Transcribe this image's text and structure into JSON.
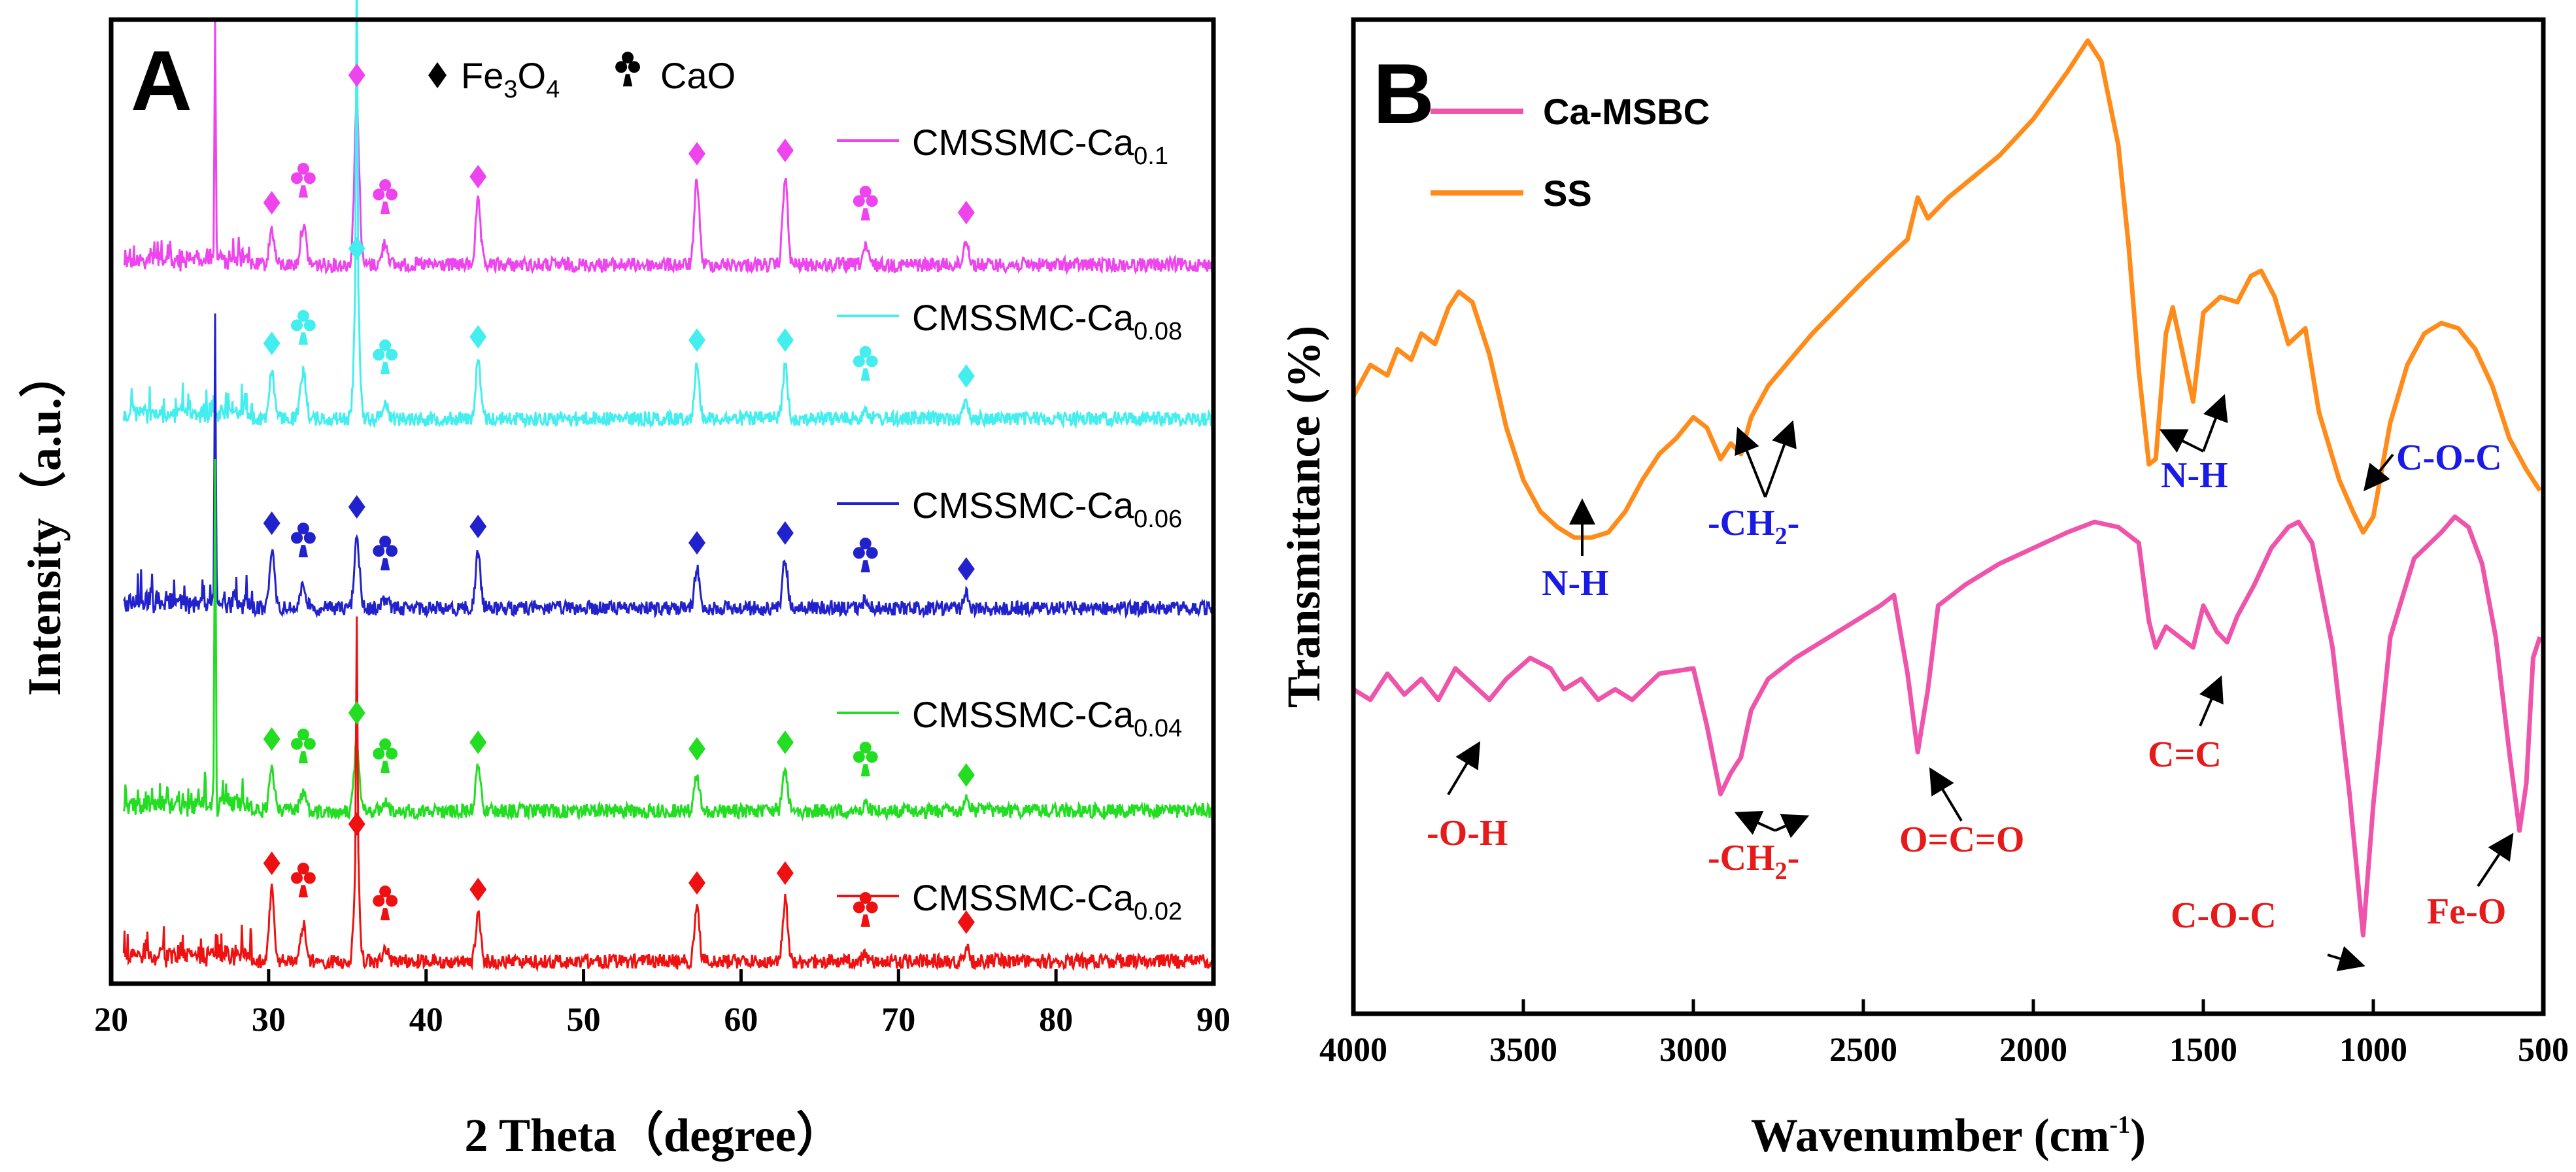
{
  "chart_data": [
    {
      "id": "A",
      "type": "line",
      "panel_label": "A",
      "title": "",
      "xlabel": "2 Theta（degree）",
      "ylabel": "Intensity（a.u.）",
      "xlim": [
        20,
        90
      ],
      "xticks": [
        20,
        30,
        40,
        50,
        60,
        70,
        80,
        90
      ],
      "grid": false,
      "legend": {
        "position": "top",
        "entries": [
          {
            "marker": "diamond",
            "base": "Fe",
            "sub1": "3",
            "mid": "O",
            "sub2": "4"
          },
          {
            "marker": "club",
            "text": "CaO"
          }
        ]
      },
      "fe3o4_peaks": [
        30.2,
        35.6,
        43.3,
        57.2,
        62.8,
        74.3
      ],
      "cao_peaks": [
        32.2,
        37.4,
        67.9
      ],
      "series": [
        {
          "name": "CMSSMC-Ca0.1",
          "base": "CMSSMC-Ca",
          "sub": "0.1",
          "color": "#ee44ee",
          "sharp": 26.6
        },
        {
          "name": "CMSSMC-Ca0.08",
          "base": "CMSSMC-Ca",
          "sub": "0.08",
          "color": "#44eeee",
          "sharp": 35.6
        },
        {
          "name": "CMSSMC-Ca0.06",
          "base": "CMSSMC-Ca",
          "sub": "0.06",
          "color": "#2222cc",
          "sharp": 26.6
        },
        {
          "name": "CMSSMC-Ca0.04",
          "base": "CMSSMC-Ca",
          "sub": "0.04",
          "color": "#22dd22",
          "sharp": 26.6
        },
        {
          "name": "CMSSMC-Ca0.02",
          "base": "CMSSMC-Ca",
          "sub": "0.02",
          "color": "#ee1111",
          "sharp": 35.6
        }
      ]
    },
    {
      "id": "B",
      "type": "line",
      "panel_label": "B",
      "title": "",
      "xlabel": "Wavenumber (cm",
      "xlabel_sup": "-1",
      "xlabel_end": ")",
      "ylabel": "Transmittance (%)",
      "xlim": [
        4000,
        500
      ],
      "xticks": [
        4000,
        3500,
        3000,
        2500,
        2000,
        1500,
        1000,
        500
      ],
      "grid": false,
      "legend": {
        "position": "top-left"
      },
      "series": [
        {
          "name": "Ca-MSBC",
          "color": "#ee55aa",
          "points": [
            [
              4000,
              0.62
            ],
            [
              3950,
              0.6
            ],
            [
              3900,
              0.65
            ],
            [
              3850,
              0.61
            ],
            [
              3800,
              0.64
            ],
            [
              3750,
              0.6
            ],
            [
              3700,
              0.66
            ],
            [
              3650,
              0.63
            ],
            [
              3600,
              0.6
            ],
            [
              3550,
              0.64
            ],
            [
              3480,
              0.68
            ],
            [
              3420,
              0.66
            ],
            [
              3380,
              0.62
            ],
            [
              3330,
              0.64
            ],
            [
              3280,
              0.6
            ],
            [
              3230,
              0.62
            ],
            [
              3180,
              0.6
            ],
            [
              3100,
              0.65
            ],
            [
              3000,
              0.66
            ],
            [
              2960,
              0.55
            ],
            [
              2920,
              0.42
            ],
            [
              2890,
              0.46
            ],
            [
              2860,
              0.49
            ],
            [
              2830,
              0.58
            ],
            [
              2780,
              0.64
            ],
            [
              2700,
              0.68
            ],
            [
              2550,
              0.74
            ],
            [
              2450,
              0.78
            ],
            [
              2410,
              0.8
            ],
            [
              2370,
              0.65
            ],
            [
              2340,
              0.5
            ],
            [
              2310,
              0.62
            ],
            [
              2280,
              0.78
            ],
            [
              2200,
              0.82
            ],
            [
              2100,
              0.86
            ],
            [
              2000,
              0.89
            ],
            [
              1900,
              0.92
            ],
            [
              1820,
              0.94
            ],
            [
              1750,
              0.93
            ],
            [
              1690,
              0.9
            ],
            [
              1660,
              0.75
            ],
            [
              1640,
              0.7
            ],
            [
              1610,
              0.74
            ],
            [
              1570,
              0.72
            ],
            [
              1530,
              0.7
            ],
            [
              1500,
              0.78
            ],
            [
              1460,
              0.73
            ],
            [
              1430,
              0.71
            ],
            [
              1400,
              0.76
            ],
            [
              1350,
              0.82
            ],
            [
              1300,
              0.89
            ],
            [
              1250,
              0.93
            ],
            [
              1220,
              0.94
            ],
            [
              1180,
              0.9
            ],
            [
              1120,
              0.7
            ],
            [
              1070,
              0.42
            ],
            [
              1030,
              0.15
            ],
            [
              1000,
              0.4
            ],
            [
              950,
              0.72
            ],
            [
              880,
              0.87
            ],
            [
              800,
              0.92
            ],
            [
              760,
              0.95
            ],
            [
              720,
              0.93
            ],
            [
              680,
              0.86
            ],
            [
              640,
              0.72
            ],
            [
              600,
              0.5
            ],
            [
              570,
              0.35
            ],
            [
              550,
              0.44
            ],
            [
              530,
              0.68
            ],
            [
              510,
              0.72
            ]
          ]
        },
        {
          "name": "SS",
          "color": "#ff8c1a",
          "points": [
            [
              4000,
              1.18
            ],
            [
              3950,
              1.24
            ],
            [
              3900,
              1.22
            ],
            [
              3870,
              1.27
            ],
            [
              3830,
              1.25
            ],
            [
              3800,
              1.3
            ],
            [
              3760,
              1.28
            ],
            [
              3720,
              1.35
            ],
            [
              3690,
              1.38
            ],
            [
              3650,
              1.36
            ],
            [
              3600,
              1.26
            ],
            [
              3550,
              1.12
            ],
            [
              3500,
              1.02
            ],
            [
              3450,
              0.96
            ],
            [
              3400,
              0.93
            ],
            [
              3350,
              0.91
            ],
            [
              3300,
              0.91
            ],
            [
              3250,
              0.92
            ],
            [
              3200,
              0.96
            ],
            [
              3150,
              1.02
            ],
            [
              3100,
              1.07
            ],
            [
              3050,
              1.1
            ],
            [
              3000,
              1.14
            ],
            [
              2960,
              1.12
            ],
            [
              2920,
              1.06
            ],
            [
              2890,
              1.09
            ],
            [
              2860,
              1.07
            ],
            [
              2830,
              1.14
            ],
            [
              2780,
              1.2
            ],
            [
              2650,
              1.3
            ],
            [
              2500,
              1.4
            ],
            [
              2420,
              1.45
            ],
            [
              2370,
              1.48
            ],
            [
              2340,
              1.56
            ],
            [
              2310,
              1.52
            ],
            [
              2250,
              1.56
            ],
            [
              2100,
              1.64
            ],
            [
              2000,
              1.71
            ],
            [
              1900,
              1.8
            ],
            [
              1840,
              1.86
            ],
            [
              1800,
              1.82
            ],
            [
              1750,
              1.66
            ],
            [
              1720,
              1.47
            ],
            [
              1690,
              1.23
            ],
            [
              1660,
              1.05
            ],
            [
              1640,
              1.06
            ],
            [
              1610,
              1.3
            ],
            [
              1590,
              1.35
            ],
            [
              1560,
              1.26
            ],
            [
              1530,
              1.17
            ],
            [
              1500,
              1.34
            ],
            [
              1450,
              1.37
            ],
            [
              1400,
              1.36
            ],
            [
              1360,
              1.41
            ],
            [
              1330,
              1.42
            ],
            [
              1290,
              1.37
            ],
            [
              1250,
              1.28
            ],
            [
              1200,
              1.31
            ],
            [
              1160,
              1.15
            ],
            [
              1100,
              1.02
            ],
            [
              1060,
              0.96
            ],
            [
              1030,
              0.92
            ],
            [
              1000,
              0.95
            ],
            [
              950,
              1.13
            ],
            [
              900,
              1.24
            ],
            [
              850,
              1.3
            ],
            [
              800,
              1.32
            ],
            [
              750,
              1.31
            ],
            [
              700,
              1.27
            ],
            [
              650,
              1.2
            ],
            [
              600,
              1.1
            ],
            [
              550,
              1.04
            ],
            [
              510,
              1.0
            ]
          ]
        }
      ],
      "annotations": [
        {
          "text": "N-H",
          "color": "#1a1ae6"
        },
        {
          "text": "-CH",
          "sub": "2",
          "end": "-",
          "color": "#1a1ae6"
        },
        {
          "text": "N-H",
          "color": "#1a1ae6"
        },
        {
          "text": "C-O-C",
          "color": "#1a1ae6"
        },
        {
          "text": "-O-H",
          "color": "#e61a1a"
        },
        {
          "text": "-CH",
          "sub": "2",
          "end": "-",
          "color": "#e61a1a"
        },
        {
          "text": "O=C=O",
          "color": "#e61a1a"
        },
        {
          "text": "C=C",
          "color": "#e61a1a"
        },
        {
          "text": "C-O-C",
          "color": "#e61a1a"
        },
        {
          "text": "Fe-O",
          "color": "#e61a1a"
        }
      ]
    }
  ]
}
